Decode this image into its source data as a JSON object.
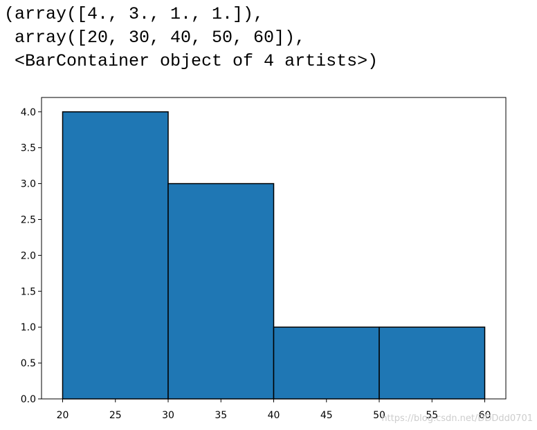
{
  "output": {
    "lines": [
      "(array([4., 3., 1., 1.]),",
      " array([20, 30, 40, 50, 60]),",
      " <BarContainer object of 4 artists>)"
    ]
  },
  "chart_data": {
    "type": "bar",
    "title": "",
    "xlabel": "",
    "ylabel": "",
    "bin_edges": [
      20,
      30,
      40,
      50,
      60
    ],
    "values": [
      4,
      3,
      1,
      1
    ],
    "xlim": [
      18,
      62
    ],
    "ylim": [
      0,
      4.2
    ],
    "x_ticks": [
      20,
      25,
      30,
      35,
      40,
      45,
      50,
      55,
      60
    ],
    "y_ticks": [
      0.0,
      0.5,
      1.0,
      1.5,
      2.0,
      2.5,
      3.0,
      3.5,
      4.0
    ],
    "x_tick_labels": [
      "20",
      "25",
      "30",
      "35",
      "40",
      "45",
      "50",
      "55",
      "60"
    ],
    "y_tick_labels": [
      "0.0",
      "0.5",
      "1.0",
      "1.5",
      "2.0",
      "2.5",
      "3.0",
      "3.5",
      "4.0"
    ],
    "grid": false,
    "legend": "none",
    "bar_color": "#1f77b4",
    "edge_color": "#000000"
  },
  "watermark": {
    "text": "https://blog.csdn.net/DDDdd0701"
  }
}
